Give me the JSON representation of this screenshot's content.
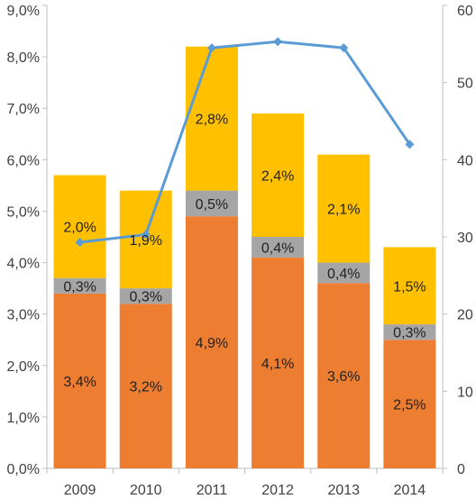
{
  "chart_data": {
    "type": "bar",
    "stacked": true,
    "categories": [
      "2009",
      "2010",
      "2011",
      "2012",
      "2013",
      "2014"
    ],
    "series": [
      {
        "type": "bar",
        "axis": "left",
        "color": "#ED7D31",
        "values": [
          3.4,
          3.2,
          4.9,
          4.1,
          3.6,
          2.5
        ],
        "labels": [
          "3,4%",
          "3,2%",
          "4,9%",
          "4,1%",
          "3,6%",
          "2,5%"
        ]
      },
      {
        "type": "bar",
        "axis": "left",
        "color": "#A5A5A5",
        "values": [
          0.3,
          0.3,
          0.5,
          0.4,
          0.4,
          0.3
        ],
        "labels": [
          "0,3%",
          "0,3%",
          "0,5%",
          "0,4%",
          "0,4%",
          "0,3%"
        ]
      },
      {
        "type": "bar",
        "axis": "left",
        "color": "#FFC000",
        "values": [
          2.0,
          1.9,
          2.8,
          2.4,
          2.1,
          1.5
        ],
        "labels": [
          "2,0%",
          "1,9%",
          "2,8%",
          "2,4%",
          "2,1%",
          "1,5%"
        ]
      },
      {
        "type": "line",
        "axis": "right",
        "color": "#5B9BD5",
        "marker": "diamond",
        "values": [
          29.3,
          30.3,
          54.5,
          55.3,
          54.5,
          42.0
        ]
      }
    ],
    "y_left": {
      "ylim": [
        0,
        9
      ],
      "ticks": [
        "0,0%",
        "1,0%",
        "2,0%",
        "3,0%",
        "4,0%",
        "5,0%",
        "6,0%",
        "7,0%",
        "8,0%",
        "9,0%"
      ]
    },
    "y_right": {
      "ylim": [
        0,
        60
      ],
      "ticks": [
        "0",
        "10",
        "20",
        "30",
        "40",
        "50",
        "60"
      ]
    },
    "grid": false,
    "legend": "none"
  }
}
